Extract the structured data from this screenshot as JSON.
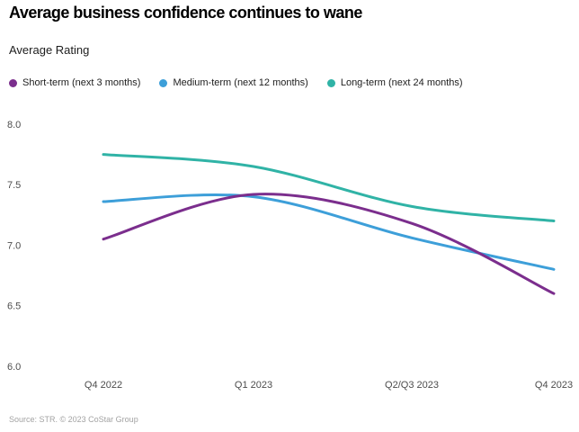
{
  "chart_data": {
    "type": "line",
    "title": "Average business confidence continues to wane",
    "subtitle": "Average Rating",
    "ylabel": "Average Rating",
    "xlabel": "",
    "categories": [
      "Q4 2022",
      "Q1 2023",
      "Q2/Q3 2023",
      "Q4 2023"
    ],
    "series": [
      {
        "name": "Short-term (next 3 months)",
        "color": "#7b2e8d",
        "values": [
          7.05,
          7.42,
          7.18,
          6.6
        ]
      },
      {
        "name": "Medium-term (next 12 months)",
        "color": "#3d9fd9",
        "values": [
          7.36,
          7.4,
          7.06,
          6.8
        ]
      },
      {
        "name": "Long-term (next 24 months)",
        "color": "#30b3a6",
        "values": [
          7.75,
          7.65,
          7.32,
          7.2
        ]
      }
    ],
    "yticks": [
      "8.0",
      "7.5",
      "7.0",
      "6.5",
      "6.0"
    ],
    "ylim": [
      6.0,
      8.0
    ],
    "grid": false,
    "legend_position": "top"
  },
  "footer": {
    "source": "Source: STR. © 2023 CoStar Group"
  }
}
